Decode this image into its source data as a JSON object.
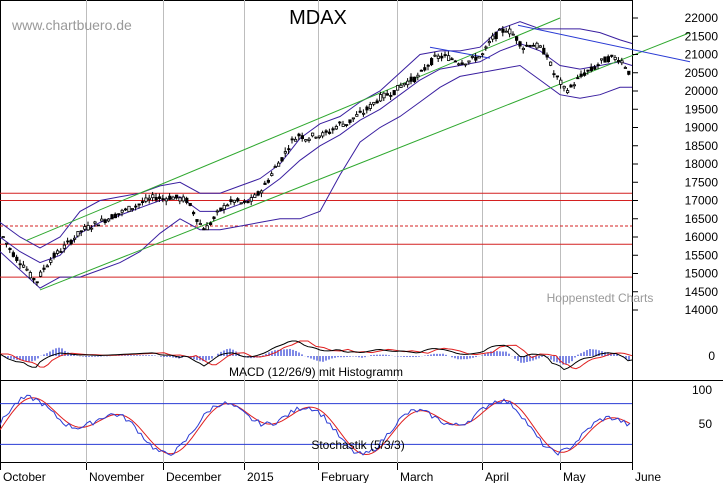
{
  "watermark": "www.chartbuero.de",
  "chart_data": [
    {
      "type": "candlestick",
      "title": "MDAX",
      "source_label": "Hoppenstedt Charts",
      "ylim": [
        14000,
        22000
      ],
      "y_ticks": [
        "22000",
        "21500",
        "21000",
        "20500",
        "20000",
        "19500",
        "19000",
        "18500",
        "18000",
        "17500",
        "17000",
        "16500",
        "16000",
        "15500",
        "15000",
        "14500",
        "14000"
      ],
      "x_ticks": [
        "October",
        "November",
        "December",
        "2015",
        "February",
        "March",
        "April",
        "May",
        "June"
      ],
      "horizontal_levels": [
        17200,
        17000,
        16300,
        15800,
        14900
      ],
      "price_path": [
        [
          0,
          16100
        ],
        [
          8,
          15700
        ],
        [
          16,
          15400
        ],
        [
          24,
          15200
        ],
        [
          30,
          14900
        ],
        [
          36,
          14800
        ],
        [
          42,
          15100
        ],
        [
          50,
          15400
        ],
        [
          58,
          15600
        ],
        [
          66,
          15800
        ],
        [
          74,
          16000
        ],
        [
          82,
          16200
        ],
        [
          90,
          16300
        ],
        [
          98,
          16400
        ],
        [
          106,
          16500
        ],
        [
          114,
          16600
        ],
        [
          122,
          16700
        ],
        [
          130,
          16800
        ],
        [
          138,
          16900
        ],
        [
          146,
          17000
        ],
        [
          154,
          17100
        ],
        [
          162,
          17050
        ],
        [
          170,
          17100
        ],
        [
          178,
          17050
        ],
        [
          186,
          17000
        ],
        [
          192,
          16700
        ],
        [
          198,
          16400
        ],
        [
          204,
          16200
        ],
        [
          210,
          16400
        ],
        [
          218,
          16700
        ],
        [
          226,
          16900
        ],
        [
          234,
          17000
        ],
        [
          242,
          16900
        ],
        [
          250,
          17000
        ],
        [
          258,
          17200
        ],
        [
          266,
          17500
        ],
        [
          274,
          17900
        ],
        [
          282,
          18200
        ],
        [
          290,
          18600
        ],
        [
          298,
          18800
        ],
        [
          306,
          18700
        ],
        [
          314,
          18800
        ],
        [
          322,
          18800
        ],
        [
          330,
          18900
        ],
        [
          338,
          19100
        ],
        [
          346,
          19100
        ],
        [
          354,
          19300
        ],
        [
          362,
          19400
        ],
        [
          370,
          19600
        ],
        [
          378,
          19800
        ],
        [
          386,
          19900
        ],
        [
          394,
          20000
        ],
        [
          402,
          20200
        ],
        [
          410,
          20300
        ],
        [
          418,
          20400
        ],
        [
          426,
          20700
        ],
        [
          434,
          20900
        ],
        [
          442,
          20950
        ],
        [
          450,
          20900
        ],
        [
          458,
          20800
        ],
        [
          466,
          20800
        ],
        [
          474,
          20900
        ],
        [
          482,
          21000
        ],
        [
          490,
          21400
        ],
        [
          498,
          21600
        ],
        [
          506,
          21700
        ],
        [
          514,
          21500
        ],
        [
          522,
          21200
        ],
        [
          530,
          21300
        ],
        [
          538,
          21200
        ],
        [
          546,
          21000
        ],
        [
          552,
          20500
        ],
        [
          558,
          20300
        ],
        [
          564,
          20000
        ],
        [
          570,
          20100
        ],
        [
          576,
          20300
        ],
        [
          584,
          20500
        ],
        [
          592,
          20600
        ],
        [
          600,
          20800
        ],
        [
          608,
          20900
        ],
        [
          616,
          20900
        ],
        [
          622,
          20800
        ],
        [
          628,
          20500
        ]
      ],
      "upper_band": [
        [
          0,
          16400
        ],
        [
          20,
          16000
        ],
        [
          40,
          15700
        ],
        [
          60,
          16000
        ],
        [
          80,
          16700
        ],
        [
          100,
          17000
        ],
        [
          120,
          17100
        ],
        [
          140,
          17200
        ],
        [
          160,
          17400
        ],
        [
          180,
          17500
        ],
        [
          200,
          17200
        ],
        [
          220,
          17200
        ],
        [
          240,
          17400
        ],
        [
          260,
          17600
        ],
        [
          280,
          18000
        ],
        [
          300,
          18700
        ],
        [
          320,
          19100
        ],
        [
          340,
          19300
        ],
        [
          360,
          19700
        ],
        [
          380,
          20000
        ],
        [
          400,
          20500
        ],
        [
          420,
          21000
        ],
        [
          440,
          21100
        ],
        [
          460,
          21100
        ],
        [
          480,
          21200
        ],
        [
          500,
          21700
        ],
        [
          520,
          21900
        ],
        [
          540,
          21700
        ],
        [
          560,
          21700
        ],
        [
          580,
          21700
        ],
        [
          600,
          21600
        ],
        [
          620,
          21400
        ],
        [
          632,
          21300
        ]
      ],
      "middle_band": [
        [
          0,
          16000
        ],
        [
          20,
          15600
        ],
        [
          40,
          15300
        ],
        [
          60,
          15500
        ],
        [
          80,
          16100
        ],
        [
          100,
          16400
        ],
        [
          120,
          16600
        ],
        [
          140,
          16800
        ],
        [
          160,
          17000
        ],
        [
          180,
          17100
        ],
        [
          200,
          16700
        ],
        [
          220,
          16700
        ],
        [
          240,
          16900
        ],
        [
          260,
          17200
        ],
        [
          280,
          17600
        ],
        [
          300,
          18100
        ],
        [
          320,
          18500
        ],
        [
          340,
          18800
        ],
        [
          360,
          19200
        ],
        [
          380,
          19500
        ],
        [
          400,
          19900
        ],
        [
          420,
          20300
        ],
        [
          440,
          20600
        ],
        [
          460,
          20700
        ],
        [
          480,
          20800
        ],
        [
          500,
          21100
        ],
        [
          520,
          21300
        ],
        [
          540,
          21100
        ],
        [
          560,
          20700
        ],
        [
          580,
          20600
        ],
        [
          600,
          20700
        ],
        [
          620,
          20800
        ],
        [
          632,
          20700
        ]
      ],
      "lower_band": [
        [
          0,
          15600
        ],
        [
          20,
          15100
        ],
        [
          40,
          14600
        ],
        [
          60,
          14900
        ],
        [
          80,
          14900
        ],
        [
          100,
          15100
        ],
        [
          120,
          15300
        ],
        [
          140,
          15600
        ],
        [
          160,
          16100
        ],
        [
          180,
          16500
        ],
        [
          200,
          16200
        ],
        [
          220,
          16200
        ],
        [
          240,
          16300
        ],
        [
          260,
          16400
        ],
        [
          280,
          16500
        ],
        [
          300,
          16500
        ],
        [
          320,
          16700
        ],
        [
          340,
          17700
        ],
        [
          360,
          18600
        ],
        [
          380,
          19000
        ],
        [
          400,
          19300
        ],
        [
          420,
          19700
        ],
        [
          440,
          20100
        ],
        [
          460,
          20400
        ],
        [
          480,
          20500
        ],
        [
          500,
          20600
        ],
        [
          520,
          20700
        ],
        [
          540,
          20300
        ],
        [
          560,
          19900
        ],
        [
          580,
          19800
        ],
        [
          600,
          19900
        ],
        [
          620,
          20100
        ],
        [
          632,
          20100
        ]
      ],
      "channel_upper": [
        [
          26,
          15900
        ],
        [
          560,
          22000
        ]
      ],
      "channel_lower": [
        [
          40,
          14550
        ],
        [
          690,
          21600
        ]
      ],
      "resistance_line": [
        [
          518,
          21800
        ],
        [
          690,
          20800
        ]
      ],
      "flag_line": [
        [
          430,
          21200
        ],
        [
          490,
          20900
        ]
      ]
    },
    {
      "type": "line",
      "title": "MACD (12/26/9) mit Histogramm",
      "y_ticks": [
        "0"
      ],
      "series": []
    },
    {
      "type": "line",
      "title": "Stochastik (5/3/3)",
      "y_ticks": [
        "100",
        "50"
      ],
      "levels": [
        80,
        20
      ],
      "ylim": [
        0,
        110
      ],
      "series": []
    }
  ],
  "colors": {
    "price": "#000000",
    "band": "#3a1fa0",
    "channel": "#2fa82f",
    "resistance": "#2a3bd4",
    "horizontal_level": "#d42020",
    "macd_line": "#000000",
    "signal_line": "#e02020",
    "histogram": "#2a3bd4",
    "stoch_k": "#2a3bd4",
    "stoch_d": "#e02020",
    "axis": "#000000",
    "grid": "#bdbdbd"
  }
}
